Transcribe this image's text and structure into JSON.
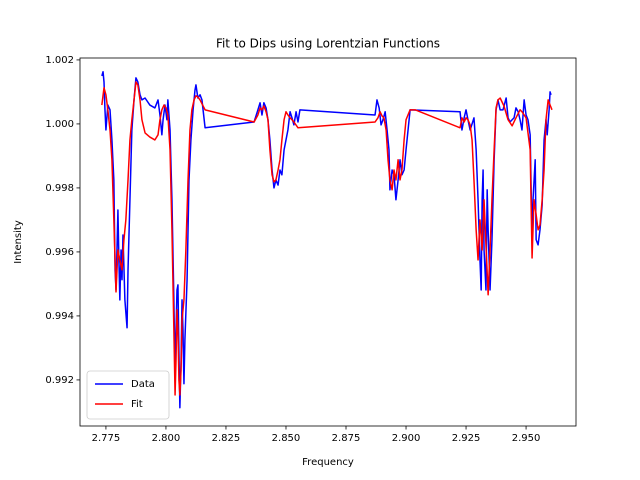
{
  "chart_data": {
    "type": "line",
    "title": "Fit to Dips using Lorentzian Functions",
    "xlabel": "Frequency",
    "ylabel": "Intensity",
    "xlim": [
      2.7642,
      2.9708
    ],
    "ylim": [
      0.99056,
      1.00206
    ],
    "xticks": [
      2.775,
      {
        "value": 2.8,
        "label": "2.800"
      },
      2.825,
      {
        "value": 2.85,
        "label": "2.850"
      },
      2.875,
      {
        "value": 2.9,
        "label": "2.900"
      },
      2.925,
      {
        "value": 2.95,
        "label": "2.950"
      }
    ],
    "yticks": [
      0.992,
      0.994,
      0.996,
      0.998,
      {
        "value": 1,
        "label": "1.000"
      },
      1.002
    ],
    "legend": "lower left",
    "series": [
      {
        "name": "Data",
        "color": "#0000ff",
        "x": [
          2.7733,
          2.7738,
          2.7742,
          2.7746,
          2.775,
          2.7758,
          2.7767,
          2.7775,
          2.7783,
          2.7788,
          2.7792,
          2.78,
          2.7804,
          2.7808,
          2.7813,
          2.7817,
          2.7821,
          2.7829,
          2.7838,
          2.7842,
          2.785,
          2.7858,
          2.7867,
          2.7875,
          2.7883,
          2.7892,
          2.79,
          2.7913,
          2.7933,
          2.7954,
          2.7967,
          2.7975,
          2.7983,
          2.7988,
          2.7996,
          2.8004,
          2.8008,
          2.8017,
          2.8025,
          2.8033,
          2.8038,
          2.8042,
          2.8046,
          2.805,
          2.8054,
          2.8058,
          2.8063,
          2.8067,
          2.8071,
          2.8075,
          2.8079,
          2.8088,
          2.8096,
          2.8104,
          2.8113,
          2.8121,
          2.8125,
          2.8133,
          2.8142,
          2.815,
          2.8163,
          2.8367,
          2.8383,
          2.8392,
          2.84,
          2.8408,
          2.8417,
          2.8425,
          2.8433,
          2.8442,
          2.845,
          2.8458,
          2.8467,
          2.8475,
          2.8483,
          2.8492,
          2.85,
          2.8508,
          2.8517,
          2.8525,
          2.8533,
          2.8542,
          2.855,
          2.8558,
          2.8871,
          2.8879,
          2.8888,
          2.8896,
          2.8904,
          2.8913,
          2.8921,
          2.8929,
          2.8933,
          2.8942,
          2.895,
          2.8958,
          2.8967,
          2.8975,
          2.8983,
          2.8992,
          2.9,
          2.9017,
          2.9225,
          2.9233,
          2.9242,
          2.925,
          2.9258,
          2.9267,
          2.9283,
          2.9292,
          2.93,
          2.9308,
          2.9313,
          2.9317,
          2.9321,
          2.9325,
          2.9333,
          2.9338,
          2.9342,
          2.935,
          2.9358,
          2.9367,
          2.9375,
          2.9383,
          2.9392,
          2.9404,
          2.9417,
          2.9425,
          2.9433,
          2.9442,
          2.945,
          2.9458,
          2.9467,
          2.9475,
          2.9483,
          2.9492,
          2.95,
          2.9508,
          2.9517,
          2.9525,
          2.9529,
          2.9538,
          2.9542,
          2.955,
          2.9558,
          2.9567,
          2.9575,
          2.9583,
          2.9588,
          2.9596,
          2.96,
          2.9604
        ],
        "values": [
          1.0015,
          1.00163,
          1.00131,
          1.00044,
          0.99981,
          1.00059,
          1.00044,
          0.9995,
          0.99825,
          0.99544,
          0.99481,
          0.99731,
          0.99575,
          0.9945,
          0.99606,
          0.99513,
          0.99653,
          0.9945,
          0.99363,
          0.99544,
          0.99763,
          0.99981,
          1.00075,
          1.00144,
          1.00131,
          1.00091,
          1.00075,
          1.00081,
          1.00059,
          1.0005,
          1.00075,
          1.00028,
          0.99966,
          1.00013,
          1.00059,
          1.00013,
          1.00075,
          0.99981,
          0.99763,
          0.9945,
          0.99231,
          0.99356,
          0.99481,
          0.99497,
          0.99294,
          0.99113,
          0.99263,
          0.9945,
          0.99356,
          0.99188,
          0.99325,
          0.99513,
          0.99825,
          0.9995,
          1.00044,
          1.00106,
          1.00122,
          1.00081,
          1.00091,
          1.00075,
          0.99988,
          1.00006,
          1.00044,
          1.00066,
          1.00028,
          1.00066,
          1.0005,
          1.00013,
          0.9995,
          0.99856,
          0.998,
          0.99825,
          0.99809,
          0.99856,
          0.99841,
          0.99919,
          0.9995,
          0.99981,
          1.00038,
          1.00019,
          0.99997,
          1.00038,
          1.00006,
          1.00044,
          1.00028,
          1.00075,
          1.0005,
          0.99997,
          1.00013,
          1.00038,
          0.99981,
          0.99919,
          0.99794,
          0.99856,
          0.99841,
          0.99763,
          0.99825,
          0.99888,
          0.99841,
          0.99856,
          0.99919,
          1.00044,
          1.00038,
          0.99981,
          1.00019,
          1.00044,
          1.00013,
          0.99981,
          1.00019,
          0.99919,
          0.99763,
          0.99575,
          0.99481,
          0.99763,
          0.99856,
          0.99606,
          0.99481,
          0.99794,
          0.99669,
          0.99481,
          0.99638,
          0.99888,
          1.00044,
          1.00075,
          1.00044,
          1.00044,
          1.00081,
          1.00019,
          1.00006,
          1.00013,
          1.00019,
          1.0005,
          1.00038,
          1.00013,
          0.99981,
          1.00075,
          1.00028,
          1.00013,
          0.99966,
          0.99638,
          0.99763,
          0.99888,
          0.99638,
          0.99622,
          0.99669,
          0.99747,
          0.9995,
          1.00013,
          0.99966,
          1.00044,
          1.001,
          1.00091
        ]
      },
      {
        "name": "Fit",
        "color": "#ff0000",
        "x": [
          2.7733,
          2.7742,
          2.775,
          2.7758,
          2.7767,
          2.7775,
          2.7783,
          2.7792,
          2.78,
          2.7808,
          2.7817,
          2.7825,
          2.7833,
          2.7842,
          2.785,
          2.7858,
          2.7867,
          2.7875,
          2.7883,
          2.7892,
          2.79,
          2.7913,
          2.7933,
          2.7954,
          2.7967,
          2.7975,
          2.7983,
          2.7992,
          2.8,
          2.8008,
          2.8017,
          2.8025,
          2.8033,
          2.8038,
          2.8042,
          2.8046,
          2.805,
          2.8054,
          2.8058,
          2.8063,
          2.8067,
          2.8075,
          2.8083,
          2.8092,
          2.81,
          2.8108,
          2.8117,
          2.8125,
          2.8133,
          2.8142,
          2.8163,
          2.8367,
          2.8383,
          2.8392,
          2.84,
          2.8408,
          2.8417,
          2.8425,
          2.8433,
          2.8442,
          2.845,
          2.8458,
          2.8467,
          2.8475,
          2.8483,
          2.8492,
          2.85,
          2.8508,
          2.8517,
          2.8525,
          2.8533,
          2.855,
          2.8871,
          2.8883,
          2.8892,
          2.89,
          2.8908,
          2.8917,
          2.8925,
          2.8933,
          2.8942,
          2.895,
          2.8958,
          2.8967,
          2.8975,
          2.8983,
          2.8992,
          2.9,
          2.9017,
          2.9038,
          2.9225,
          2.9233,
          2.9242,
          2.925,
          2.9258,
          2.9267,
          2.9275,
          2.9283,
          2.9292,
          2.93,
          2.9308,
          2.9317,
          2.9325,
          2.9333,
          2.9342,
          2.935,
          2.9358,
          2.9367,
          2.9375,
          2.9383,
          2.9392,
          2.9408,
          2.9425,
          2.9442,
          2.9458,
          2.9475,
          2.9483,
          2.95,
          2.9517,
          2.9525,
          2.9533,
          2.9542,
          2.955,
          2.9558,
          2.9567,
          2.9575,
          2.9583,
          2.9592,
          2.96,
          2.9608
        ],
        "values": [
          1.00059,
          1.00113,
          1.00091,
          1.00044,
          0.99981,
          0.99888,
          0.997,
          0.99475,
          0.99606,
          0.99575,
          0.99544,
          0.99638,
          0.997,
          0.99825,
          0.9995,
          1.00013,
          1.00075,
          1.00131,
          1.00122,
          1.00075,
          1.00013,
          0.99972,
          0.99959,
          0.9995,
          0.99966,
          1.00013,
          1.00044,
          1.00059,
          1.0005,
          1.00028,
          0.99919,
          0.99669,
          0.99356,
          0.99153,
          0.99263,
          0.99419,
          0.99356,
          0.992,
          0.99153,
          0.99231,
          0.99388,
          0.9945,
          0.99606,
          0.99825,
          0.99981,
          1.00044,
          1.00075,
          1.00088,
          1.00084,
          1.00075,
          1.00044,
          1.00006,
          1.00028,
          1.0005,
          1.00044,
          1.00056,
          1.00038,
          1.00013,
          0.99919,
          0.99841,
          0.99819,
          0.99825,
          0.99856,
          0.99888,
          0.9995,
          1.00013,
          1.00038,
          1.00028,
          1.00019,
          1.00013,
          1.00006,
          0.99988,
          1.00006,
          1.00019,
          1.00038,
          1.00025,
          1.00019,
          0.99981,
          0.99888,
          0.99825,
          0.99794,
          0.99856,
          0.99825,
          0.99888,
          0.99825,
          0.99856,
          0.9995,
          1.00013,
          1.00044,
          1.00044,
          0.99988,
          1.00019,
          1.00006,
          1.00019,
          1.00013,
          0.99997,
          0.9995,
          0.99825,
          0.99669,
          0.99575,
          0.997,
          0.99606,
          0.99763,
          0.99622,
          0.99466,
          0.99606,
          0.99763,
          0.99919,
          1.0005,
          1.00075,
          1.00081,
          1.00056,
          1.00013,
          0.99994,
          1.00019,
          1.00044,
          1.00038,
          1.00019,
          0.99919,
          0.99581,
          0.99763,
          0.99716,
          0.99669,
          0.99684,
          0.99763,
          0.99856,
          1.00013,
          1.00075,
          1.00059,
          1.00044
        ]
      }
    ]
  }
}
